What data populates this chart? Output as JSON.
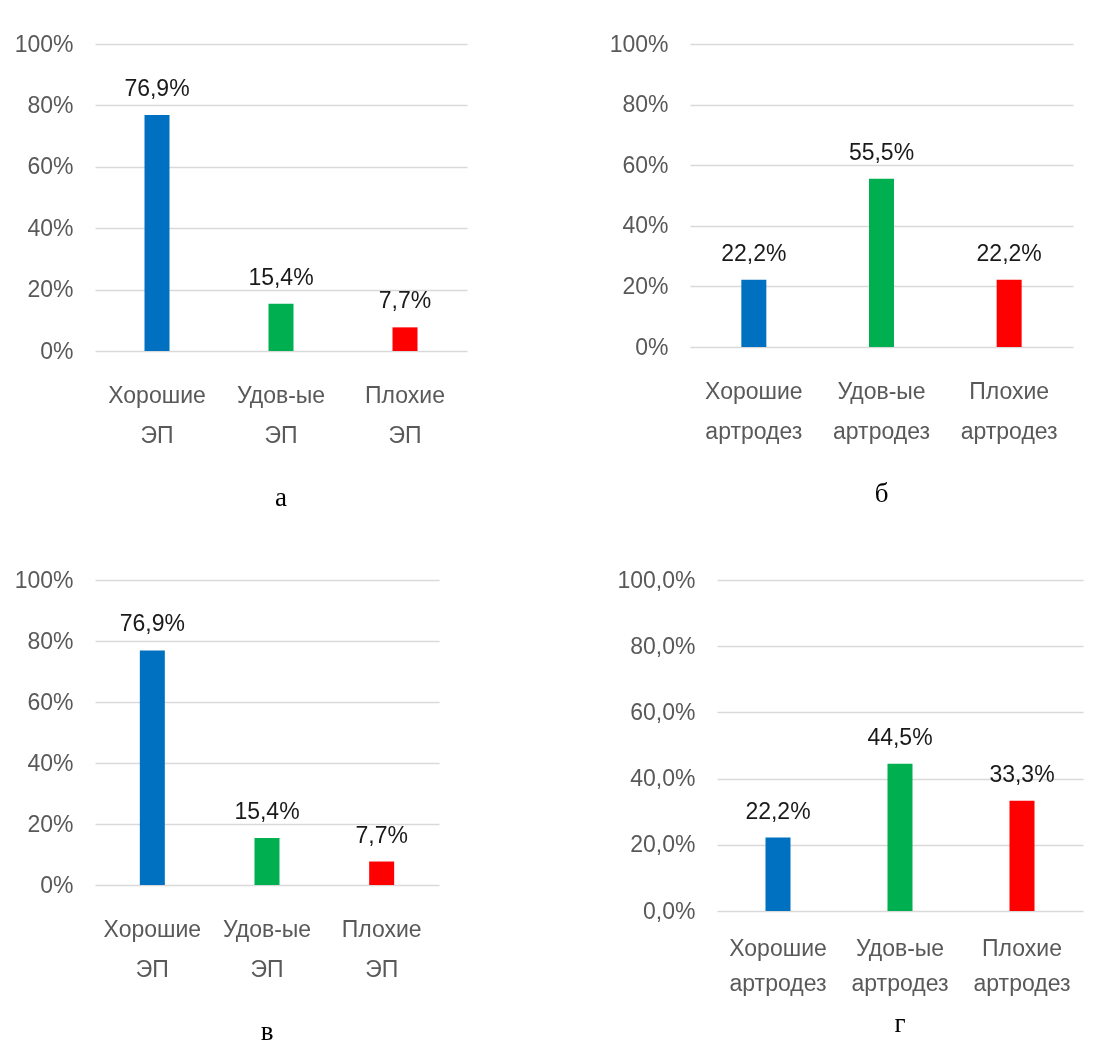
{
  "chart_data": [
    {
      "type": "bar",
      "title": "а",
      "categories": [
        "Хорошие ЭП",
        "Удов-ые ЭП",
        "Плохие ЭП"
      ],
      "values": [
        76.9,
        15.4,
        7.7
      ],
      "colors": [
        "#0070c0",
        "#00b050",
        "#ff0000"
      ],
      "value_labels": [
        "76,9%",
        "15,4%",
        "7,7%"
      ],
      "ylim": [
        0,
        100
      ],
      "yticks": [
        {
          "value": 0,
          "label": "0%"
        },
        {
          "value": 20,
          "label": "20%"
        },
        {
          "value": 40,
          "label": "40%"
        },
        {
          "value": 60,
          "label": "60%"
        },
        {
          "value": 80,
          "label": "80%"
        },
        {
          "value": 100,
          "label": "100%"
        }
      ],
      "grid": "y"
    },
    {
      "type": "bar",
      "title": "б",
      "categories": [
        "Хорошие артродез",
        "Удов-ые артродез",
        "Плохие артродез"
      ],
      "values": [
        22.2,
        55.5,
        22.2
      ],
      "colors": [
        "#0070c0",
        "#00b050",
        "#ff0000"
      ],
      "value_labels": [
        "22,2%",
        "55,5%",
        "22,2%"
      ],
      "ylim": [
        0,
        100
      ],
      "yticks": [
        {
          "value": 0,
          "label": "0%"
        },
        {
          "value": 20,
          "label": "20%"
        },
        {
          "value": 40,
          "label": "40%"
        },
        {
          "value": 60,
          "label": "60%"
        },
        {
          "value": 80,
          "label": "80%"
        },
        {
          "value": 100,
          "label": "100%"
        }
      ],
      "grid": "y"
    },
    {
      "type": "bar",
      "title": "в",
      "categories": [
        "Хорошие ЭП",
        "Удов-ые ЭП",
        "Плохие ЭП"
      ],
      "values": [
        76.9,
        15.4,
        7.7
      ],
      "colors": [
        "#0070c0",
        "#00b050",
        "#ff0000"
      ],
      "value_labels": [
        "76,9%",
        "15,4%",
        "7,7%"
      ],
      "ylim": [
        0,
        100
      ],
      "yticks": [
        {
          "value": 0,
          "label": "0%"
        },
        {
          "value": 20,
          "label": "20%"
        },
        {
          "value": 40,
          "label": "40%"
        },
        {
          "value": 60,
          "label": "60%"
        },
        {
          "value": 80,
          "label": "80%"
        },
        {
          "value": 100,
          "label": "100%"
        }
      ],
      "grid": "y"
    },
    {
      "type": "bar",
      "title": "г",
      "categories": [
        "Хорошие артродез",
        "Удов-ые артродез",
        "Плохие артродез"
      ],
      "values": [
        22.2,
        44.5,
        33.3
      ],
      "colors": [
        "#0070c0",
        "#00b050",
        "#ff0000"
      ],
      "value_labels": [
        "22,2%",
        "44,5%",
        "33,3%"
      ],
      "ylim": [
        0,
        100
      ],
      "yticks": [
        {
          "value": 0,
          "label": "0,0%"
        },
        {
          "value": 20,
          "label": "20,0%"
        },
        {
          "value": 40,
          "label": "40,0%"
        },
        {
          "value": 60,
          "label": "60,0%"
        },
        {
          "value": 80,
          "label": "80,0%"
        },
        {
          "value": 100,
          "label": "100,0%"
        }
      ],
      "grid": "y"
    }
  ]
}
